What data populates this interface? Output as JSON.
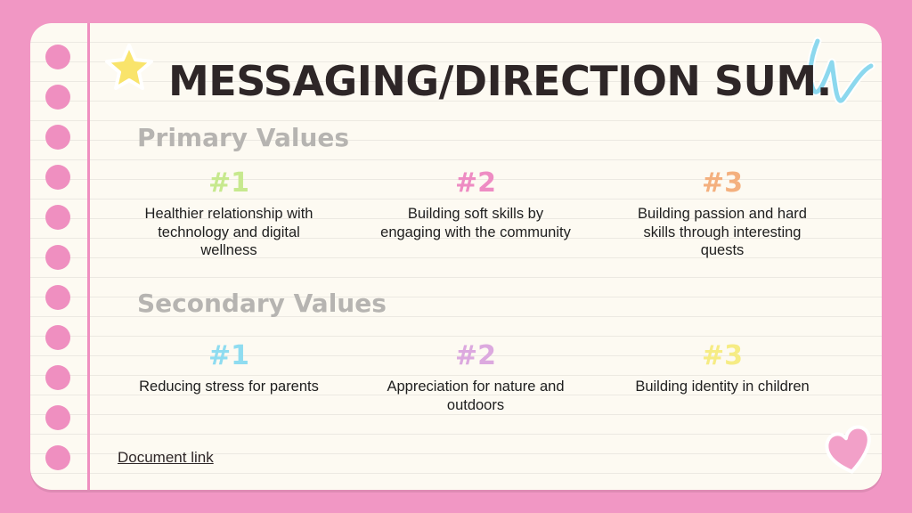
{
  "title": "MESSAGING/DIRECTION SUM.",
  "primary": {
    "heading": "Primary Values",
    "items": [
      {
        "num": "#1",
        "text": "Healthier relationship with technology and digital wellness",
        "color": "#c7e98e"
      },
      {
        "num": "#2",
        "text": "Building soft skills by engaging with the community",
        "color": "#ee8cc3"
      },
      {
        "num": "#3",
        "text": "Building passion and hard skills through interesting quests",
        "color": "#f4b07e"
      }
    ]
  },
  "secondary": {
    "heading": "Secondary Values",
    "items": [
      {
        "num": "#1",
        "text": "Reducing stress for parents",
        "color": "#8fdcf0"
      },
      {
        "num": "#2",
        "text": "Appreciation for nature and outdoors",
        "color": "#dca9df"
      },
      {
        "num": "#3",
        "text": "Building identity in children",
        "color": "#f6ec84"
      }
    ]
  },
  "link": {
    "label": "Document link"
  },
  "colors": {
    "background": "#f197c4",
    "paper": "#fdfaf2",
    "margin_line": "#ef8fc0",
    "title": "#2e2627",
    "heading": "#b6b4b1"
  },
  "icons": [
    "star-icon",
    "scribble-icon",
    "heart-icon"
  ]
}
